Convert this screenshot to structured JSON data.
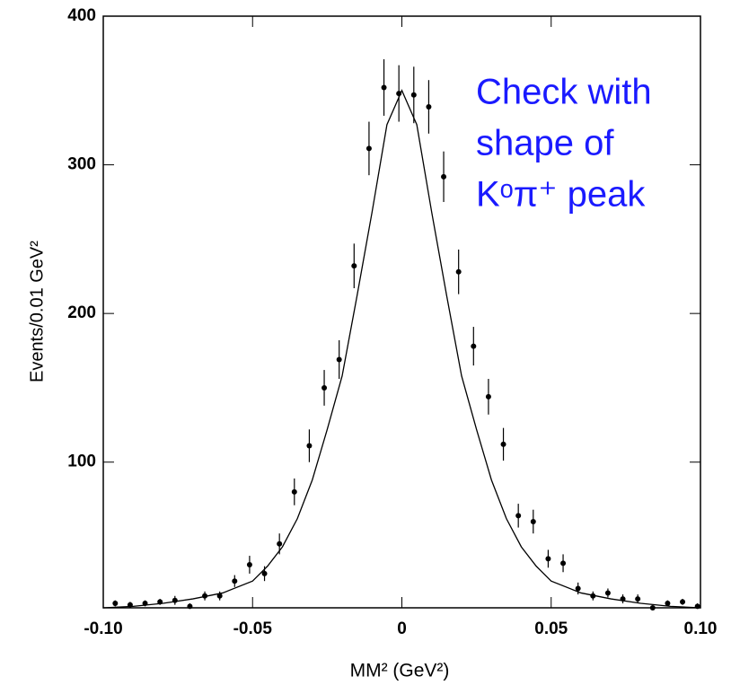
{
  "chart_data": {
    "type": "scatter",
    "xlabel": "MM² (GeV²)",
    "ylabel": "Events/0.01 GeV²",
    "annotation": [
      "Check with",
      "shape of",
      "Kᵒπ⁺ peak"
    ],
    "annotation_color": "#1a1aff",
    "xlim": [
      -0.1,
      0.1
    ],
    "ylim": [
      2,
      400
    ],
    "xticks": [
      {
        "value": -0.1,
        "label": "-0.10"
      },
      {
        "value": -0.05,
        "label": "-0.05"
      },
      0,
      0.05,
      {
        "value": 0.1,
        "label": "0.10"
      }
    ],
    "yticks": [
      100,
      200,
      300,
      400
    ],
    "points": {
      "color": "#000000",
      "x": [
        -0.096,
        -0.091,
        -0.086,
        -0.081,
        -0.076,
        -0.071,
        -0.066,
        -0.061,
        -0.056,
        -0.051,
        -0.046,
        -0.041,
        -0.036,
        -0.031,
        -0.026,
        -0.021,
        -0.016,
        -0.011,
        -0.006,
        -0.001,
        0.004,
        0.009,
        0.014,
        0.019,
        0.024,
        0.029,
        0.034,
        0.039,
        0.044,
        0.049,
        0.054,
        0.059,
        0.064,
        0.069,
        0.074,
        0.079,
        0.084,
        0.089,
        0.094,
        0.099
      ],
      "values": [
        5,
        4,
        5,
        6,
        7,
        3,
        10,
        10,
        20,
        31,
        25,
        45,
        80,
        111,
        150,
        169,
        232,
        311,
        352,
        348,
        347,
        339,
        292,
        228,
        178,
        144,
        112,
        64,
        60,
        35,
        32,
        15,
        10,
        12,
        8,
        8,
        2,
        5,
        6,
        3
      ],
      "errors": [
        2,
        2,
        2,
        2,
        3,
        2,
        3,
        3,
        4,
        6,
        5,
        7,
        9,
        11,
        12,
        13,
        15,
        18,
        19,
        19,
        19,
        18,
        17,
        15,
        13,
        12,
        11,
        8,
        8,
        6,
        6,
        4,
        3,
        3,
        3,
        3,
        1,
        2,
        2,
        2
      ]
    },
    "fit": {
      "color": "#000000",
      "x": [
        -0.1,
        -0.09,
        -0.08,
        -0.07,
        -0.06,
        -0.05,
        -0.045,
        -0.04,
        -0.035,
        -0.03,
        -0.025,
        -0.02,
        -0.015,
        -0.01,
        -0.005,
        0,
        0.005,
        0.01,
        0.015,
        0.02,
        0.025,
        0.03,
        0.035,
        0.04,
        0.045,
        0.05,
        0.06,
        0.07,
        0.08,
        0.09,
        0.1
      ],
      "values": [
        2,
        3,
        5,
        8,
        12,
        20,
        30,
        43,
        62,
        88,
        122,
        158,
        212,
        268,
        327,
        350,
        327,
        268,
        212,
        158,
        122,
        88,
        62,
        43,
        30,
        20,
        12,
        8,
        5,
        3,
        2
      ]
    }
  }
}
